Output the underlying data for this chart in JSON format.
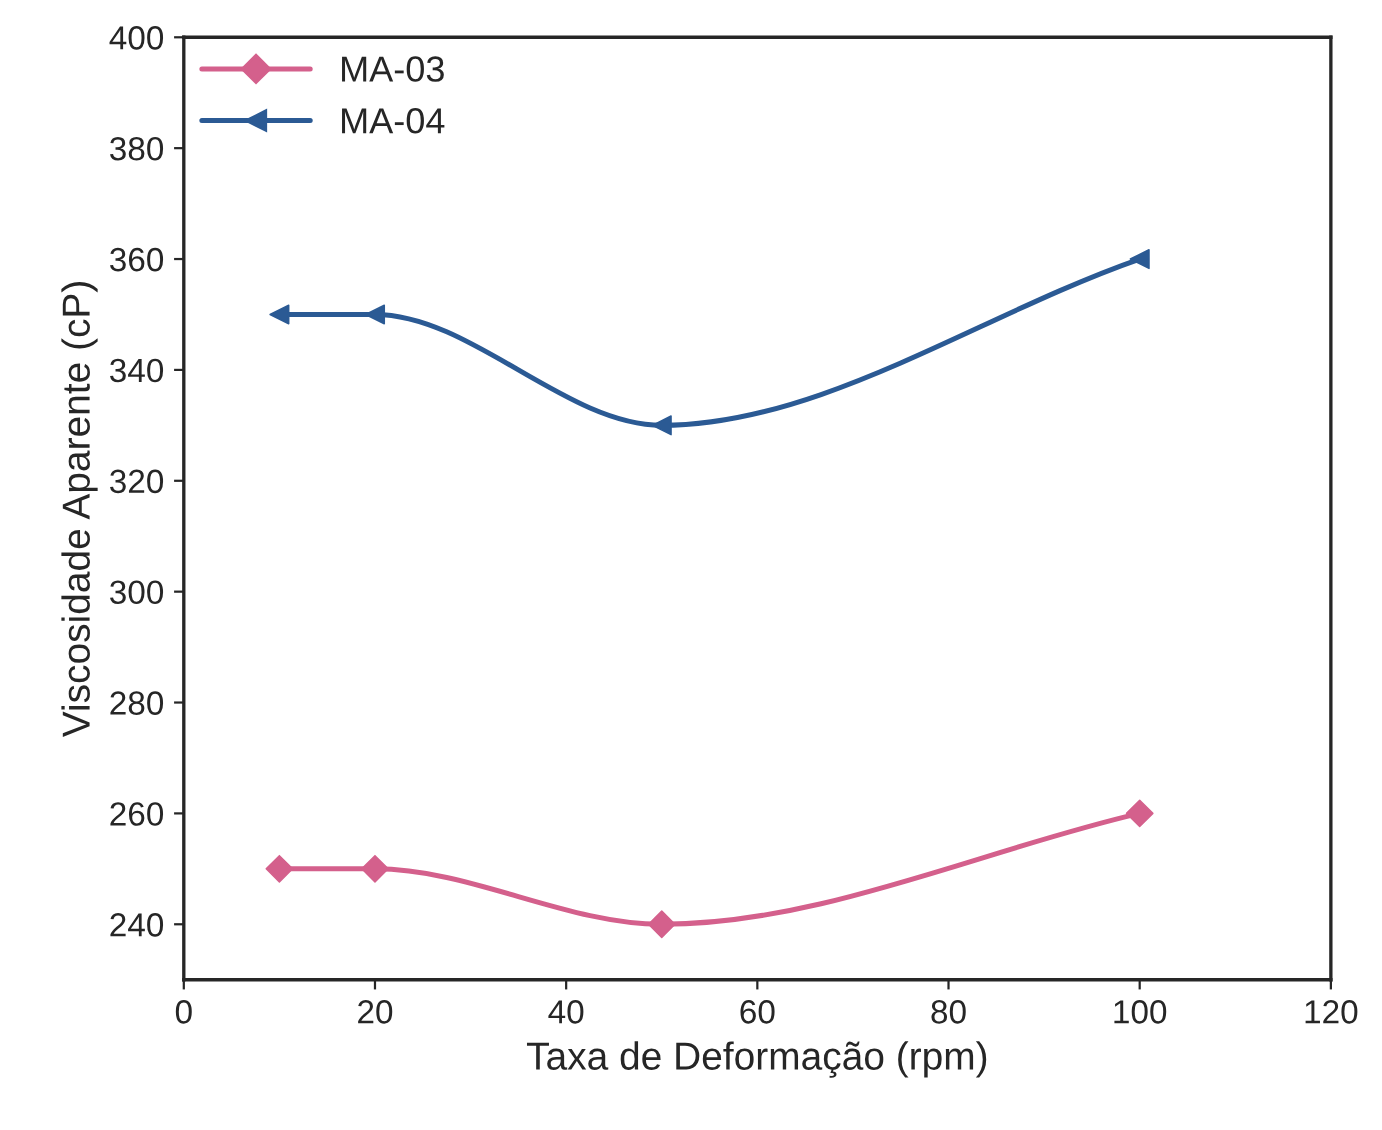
{
  "chart_data": {
    "type": "line",
    "xlabel": "Taxa de Deformação (rpm)",
    "ylabel": "Viscosidade Aparente (cP)",
    "x": [
      10,
      20,
      50,
      100
    ],
    "series": [
      {
        "name": "MA-03",
        "color": "#d4608c",
        "marker": "diamond",
        "values": [
          250,
          250,
          240,
          260
        ]
      },
      {
        "name": "MA-04",
        "color": "#2b5a94",
        "marker": "triangle",
        "values": [
          350,
          350,
          330,
          360
        ]
      }
    ],
    "xlim": [
      0,
      120
    ],
    "xticks": [
      0,
      20,
      40,
      60,
      80,
      100,
      120
    ],
    "ylim": [
      230,
      400
    ],
    "yticks": [
      240,
      260,
      280,
      300,
      320,
      340,
      360,
      380,
      400
    ],
    "grid": false,
    "legend": "top left",
    "line_style": "solid"
  }
}
